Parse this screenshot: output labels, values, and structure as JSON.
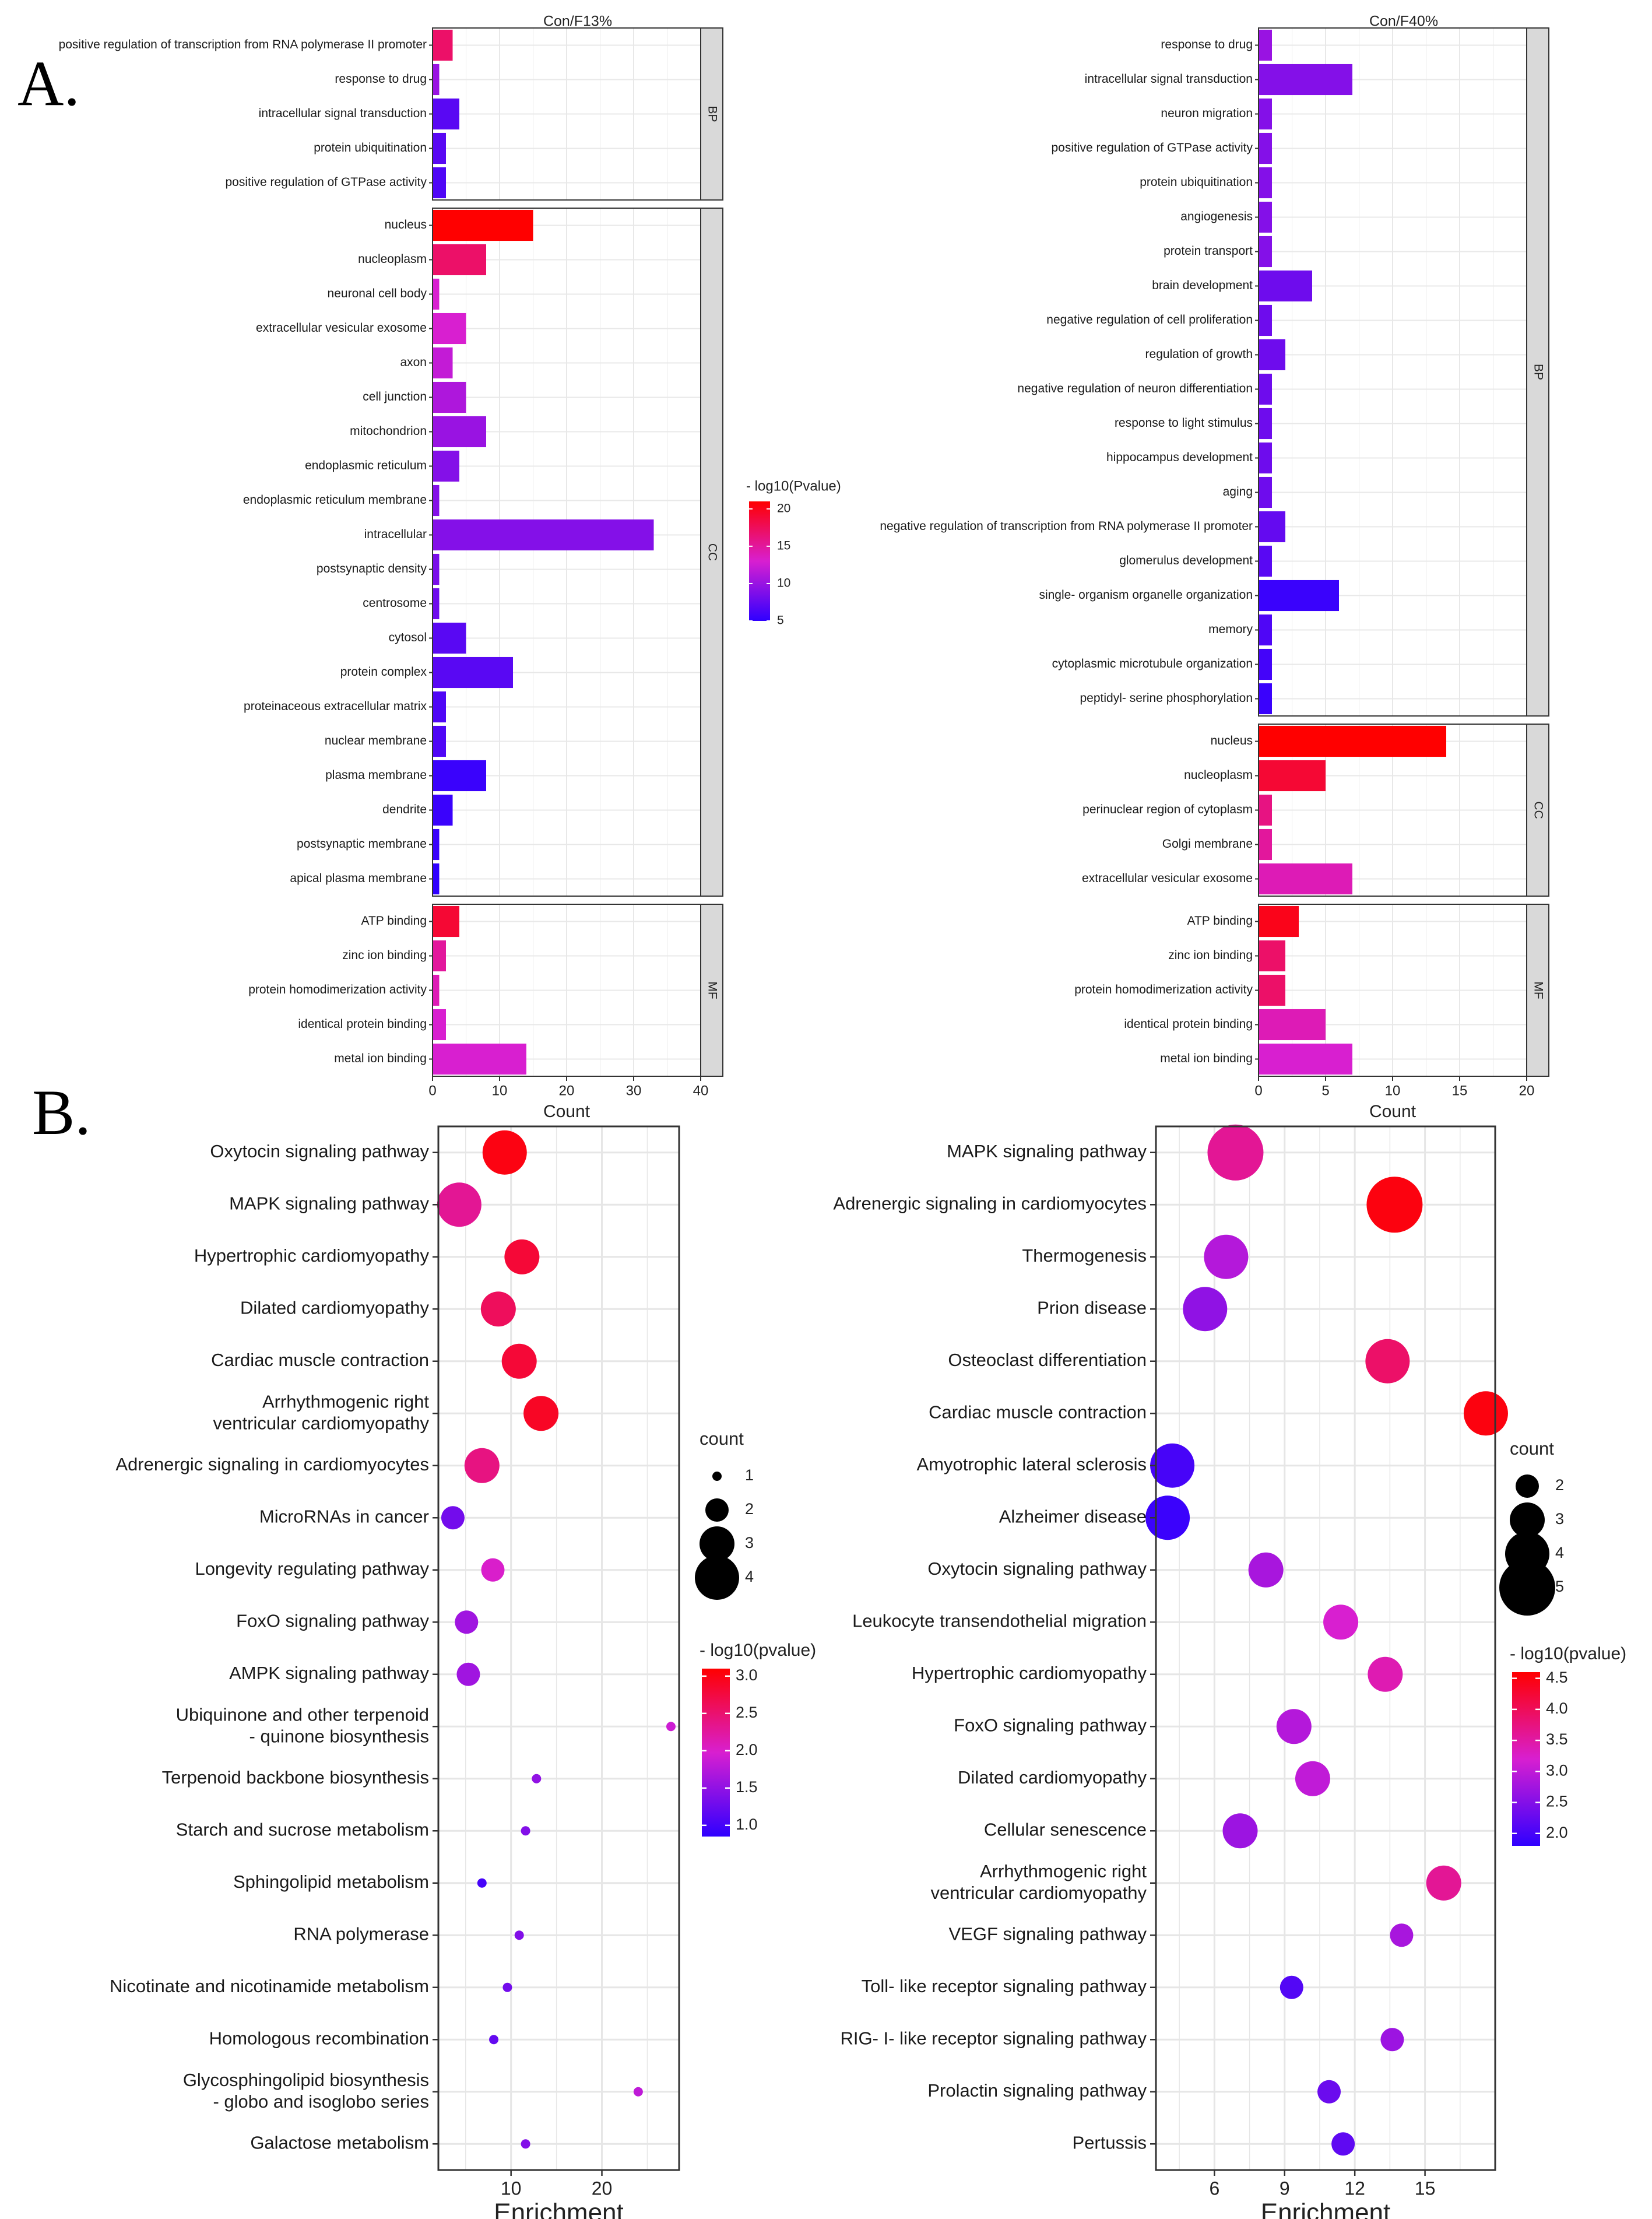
{
  "figure": {
    "panel_a_label": "A.",
    "panel_b_label": "B."
  },
  "chart_data": [
    {
      "type": "bar",
      "id": "go_con_f13",
      "title": "Con/F13%",
      "xlabel": "Count",
      "xlim": [
        0,
        40
      ],
      "xticks": [
        0,
        10,
        20,
        30,
        40
      ],
      "legend_title": "- log10(Pvalue)",
      "color_range": [
        5,
        21
      ],
      "color_ticks": [
        5,
        10,
        15,
        20
      ],
      "facets": [
        {
          "name": "BP",
          "terms": [
            {
              "label": "positive regulation of transcription from RNA polymerase II promoter",
              "count": 3,
              "logp": 17
            },
            {
              "label": "response to drug",
              "count": 1,
              "logp": 10
            },
            {
              "label": "intracellular signal transduction",
              "count": 4,
              "logp": 7
            },
            {
              "label": "protein ubiquitination",
              "count": 2,
              "logp": 7
            },
            {
              "label": "positive regulation of GTPase activity",
              "count": 2,
              "logp": 6.5
            }
          ]
        },
        {
          "name": "CC",
          "terms": [
            {
              "label": "nucleus",
              "count": 15,
              "logp": 21
            },
            {
              "label": "nucleoplasm",
              "count": 8,
              "logp": 17
            },
            {
              "label": "neuronal cell body",
              "count": 1,
              "logp": 13
            },
            {
              "label": "extracellular vesicular exosome",
              "count": 5,
              "logp": 13
            },
            {
              "label": "axon",
              "count": 3,
              "logp": 12
            },
            {
              "label": "cell junction",
              "count": 5,
              "logp": 11
            },
            {
              "label": "mitochondrion",
              "count": 8,
              "logp": 10
            },
            {
              "label": "endoplasmic reticulum",
              "count": 4,
              "logp": 9
            },
            {
              "label": "endoplasmic reticulum membrane",
              "count": 1,
              "logp": 9
            },
            {
              "label": "intracellular",
              "count": 33,
              "logp": 9
            },
            {
              "label": "postsynaptic density",
              "count": 1,
              "logp": 8.5
            },
            {
              "label": "centrosome",
              "count": 1,
              "logp": 8
            },
            {
              "label": "cytosol",
              "count": 5,
              "logp": 7
            },
            {
              "label": "protein complex",
              "count": 12,
              "logp": 7
            },
            {
              "label": "proteinaceous extracellular matrix",
              "count": 2,
              "logp": 6.5
            },
            {
              "label": "nuclear membrane",
              "count": 2,
              "logp": 6.5
            },
            {
              "label": "plasma membrane",
              "count": 8,
              "logp": 5.5
            },
            {
              "label": "dendrite",
              "count": 3,
              "logp": 5.5
            },
            {
              "label": "postsynaptic membrane",
              "count": 1,
              "logp": 5.5
            },
            {
              "label": "apical plasma membrane",
              "count": 1,
              "logp": 5
            }
          ]
        },
        {
          "name": "MF",
          "terms": [
            {
              "label": "ATP binding",
              "count": 4,
              "logp": 19
            },
            {
              "label": "zinc ion binding",
              "count": 2,
              "logp": 15
            },
            {
              "label": "protein homodimerization activity",
              "count": 1,
              "logp": 14
            },
            {
              "label": "identical protein binding",
              "count": 2,
              "logp": 13
            },
            {
              "label": "metal ion binding",
              "count": 14,
              "logp": 13
            }
          ]
        }
      ]
    },
    {
      "type": "bar",
      "id": "go_con_f40",
      "title": "Con/F40%",
      "xlabel": "Count",
      "xlim": [
        0,
        20
      ],
      "xticks": [
        0,
        5,
        10,
        15,
        20
      ],
      "color_range": [
        5,
        21
      ],
      "facets": [
        {
          "name": "BP",
          "terms": [
            {
              "label": "response to drug",
              "count": 1,
              "logp": 10
            },
            {
              "label": "intracellular signal transduction",
              "count": 7,
              "logp": 9
            },
            {
              "label": "neuron migration",
              "count": 1,
              "logp": 9
            },
            {
              "label": "positive regulation of GTPase activity",
              "count": 1,
              "logp": 9
            },
            {
              "label": "protein ubiquitination",
              "count": 1,
              "logp": 9
            },
            {
              "label": "angiogenesis",
              "count": 1,
              "logp": 9
            },
            {
              "label": "protein transport",
              "count": 1,
              "logp": 9
            },
            {
              "label": "brain development",
              "count": 4,
              "logp": 8
            },
            {
              "label": "negative regulation of cell proliferation",
              "count": 1,
              "logp": 8
            },
            {
              "label": "regulation of growth",
              "count": 2,
              "logp": 8
            },
            {
              "label": "negative regulation of neuron differentiation",
              "count": 1,
              "logp": 8
            },
            {
              "label": "response to light stimulus",
              "count": 1,
              "logp": 8
            },
            {
              "label": "hippocampus development",
              "count": 1,
              "logp": 8
            },
            {
              "label": "aging",
              "count": 1,
              "logp": 8
            },
            {
              "label": "negative regulation of transcription from RNA polymerase II promoter",
              "count": 2,
              "logp": 7.5
            },
            {
              "label": "glomerulus development",
              "count": 1,
              "logp": 7
            },
            {
              "label": "single- organism organelle organization",
              "count": 6,
              "logp": 5.5
            },
            {
              "label": "memory",
              "count": 1,
              "logp": 6.5
            },
            {
              "label": "cytoplasmic microtubule organization",
              "count": 1,
              "logp": 6
            },
            {
              "label": "peptidyl- serine phosphorylation",
              "count": 1,
              "logp": 5.5
            }
          ]
        },
        {
          "name": "CC",
          "terms": [
            {
              "label": "nucleus",
              "count": 14,
              "logp": 21
            },
            {
              "label": "nucleoplasm",
              "count": 5,
              "logp": 19
            },
            {
              "label": "perinuclear region of cytoplasm",
              "count": 1,
              "logp": 16
            },
            {
              "label": "Golgi membrane",
              "count": 1,
              "logp": 15
            },
            {
              "label": "extracellular vesicular exosome",
              "count": 7,
              "logp": 14
            }
          ]
        },
        {
          "name": "MF",
          "terms": [
            {
              "label": "ATP binding",
              "count": 3,
              "logp": 20
            },
            {
              "label": "zinc ion binding",
              "count": 2,
              "logp": 17
            },
            {
              "label": "protein homodimerization activity",
              "count": 2,
              "logp": 17
            },
            {
              "label": "identical protein binding",
              "count": 5,
              "logp": 14
            },
            {
              "label": "metal ion binding",
              "count": 7,
              "logp": 13
            }
          ]
        }
      ]
    },
    {
      "type": "scatter",
      "id": "kegg_left",
      "xlabel": "Enrichment",
      "xlim": [
        2,
        28.5
      ],
      "xticks": [
        10,
        20
      ],
      "size_title": "count",
      "size_ticks": [
        1,
        2,
        3,
        4
      ],
      "color_title": "- log10(pvalue)",
      "color_range": [
        0.85,
        3.1
      ],
      "color_ticks": [
        1.0,
        1.5,
        2.0,
        2.5,
        3.0
      ],
      "points": [
        {
          "label": [
            "Oxytocin signaling pathway"
          ],
          "x": 9.3,
          "count": 4,
          "logp": 3.0
        },
        {
          "label": [
            "MAPK signaling pathway"
          ],
          "x": 4.3,
          "count": 4,
          "logp": 2.3
        },
        {
          "label": [
            "Hypertrophic cardiomyopathy"
          ],
          "x": 11.2,
          "count": 3,
          "logp": 2.8
        },
        {
          "label": [
            "Dilated cardiomyopathy"
          ],
          "x": 8.6,
          "count": 3,
          "logp": 2.6
        },
        {
          "label": [
            "Cardiac muscle contraction"
          ],
          "x": 10.9,
          "count": 3,
          "logp": 2.8
        },
        {
          "label": [
            "Arrhythmogenic right",
            "ventricular cardiomyopathy"
          ],
          "x": 13.3,
          "count": 3,
          "logp": 2.9
        },
        {
          "label": [
            "Adrenergic signaling in cardiomyocytes"
          ],
          "x": 6.8,
          "count": 3,
          "logp": 2.4
        },
        {
          "label": [
            "MicroRNAs in cancer"
          ],
          "x": 3.6,
          "count": 2,
          "logp": 1.3
        },
        {
          "label": [
            "Longevity regulating pathway"
          ],
          "x": 8.0,
          "count": 2,
          "logp": 2.0
        },
        {
          "label": [
            "FoxO signaling pathway"
          ],
          "x": 5.1,
          "count": 2,
          "logp": 1.6
        },
        {
          "label": [
            "AMPK signaling pathway"
          ],
          "x": 5.3,
          "count": 2,
          "logp": 1.6
        },
        {
          "label": [
            "Ubiquinone and other terpenoid",
            "- quinone biosynthesis"
          ],
          "x": 27.6,
          "count": 1,
          "logp": 1.9
        },
        {
          "label": [
            "Terpenoid backbone biosynthesis"
          ],
          "x": 12.8,
          "count": 1,
          "logp": 1.5
        },
        {
          "label": [
            "Starch and sucrose metabolism"
          ],
          "x": 11.6,
          "count": 1,
          "logp": 1.4
        },
        {
          "label": [
            "Sphingolipid metabolism"
          ],
          "x": 6.8,
          "count": 1,
          "logp": 1.0
        },
        {
          "label": [
            "RNA polymerase"
          ],
          "x": 10.9,
          "count": 1,
          "logp": 1.4
        },
        {
          "label": [
            "Nicotinate and nicotinamide metabolism"
          ],
          "x": 9.6,
          "count": 1,
          "logp": 1.3
        },
        {
          "label": [
            "Homologous recombination"
          ],
          "x": 8.1,
          "count": 1,
          "logp": 1.2
        },
        {
          "label": [
            "Glycosphingolipid biosynthesis",
            "- globo and isoglobo series"
          ],
          "x": 24.0,
          "count": 1,
          "logp": 1.8
        },
        {
          "label": [
            "Galactose metabolism"
          ],
          "x": 11.6,
          "count": 1,
          "logp": 1.4
        }
      ]
    },
    {
      "type": "scatter",
      "id": "kegg_right",
      "xlabel": "Enrichment",
      "xlim": [
        3.5,
        18.0
      ],
      "xticks": [
        6,
        9,
        12,
        15
      ],
      "size_title": "count",
      "size_ticks": [
        2,
        3,
        4,
        5
      ],
      "color_title": "- log10(pvalue)",
      "color_range": [
        1.8,
        4.6
      ],
      "color_ticks": [
        2.0,
        2.5,
        3.0,
        3.5,
        4.0,
        4.5
      ],
      "points": [
        {
          "label": [
            "MAPK signaling pathway"
          ],
          "x": 6.9,
          "count": 5,
          "logp": 3.6
        },
        {
          "label": [
            "Adrenergic signaling in cardiomyocytes"
          ],
          "x": 13.7,
          "count": 5,
          "logp": 4.5
        },
        {
          "label": [
            "Thermogenesis"
          ],
          "x": 6.5,
          "count": 4,
          "logp": 2.9
        },
        {
          "label": [
            "Prion disease"
          ],
          "x": 5.6,
          "count": 4,
          "logp": 2.6
        },
        {
          "label": [
            "Osteoclast differentiation"
          ],
          "x": 13.4,
          "count": 4,
          "logp": 3.9
        },
        {
          "label": [
            "Cardiac muscle contraction"
          ],
          "x": 17.6,
          "count": 4,
          "logp": 4.5
        },
        {
          "label": [
            "Amyotrophic lateral sclerosis"
          ],
          "x": 4.2,
          "count": 4,
          "logp": 2.0
        },
        {
          "label": [
            "Alzheimer disease"
          ],
          "x": 4.0,
          "count": 4,
          "logp": 1.9
        },
        {
          "label": [
            "Oxytocin signaling pathway"
          ],
          "x": 8.2,
          "count": 3,
          "logp": 2.8
        },
        {
          "label": [
            "Leukocyte transendothelial migration"
          ],
          "x": 11.4,
          "count": 3,
          "logp": 3.2
        },
        {
          "label": [
            "Hypertrophic cardiomyopathy"
          ],
          "x": 13.3,
          "count": 3,
          "logp": 3.4
        },
        {
          "label": [
            "FoxO signaling pathway"
          ],
          "x": 9.4,
          "count": 3,
          "logp": 2.9
        },
        {
          "label": [
            "Dilated cardiomyopathy"
          ],
          "x": 10.2,
          "count": 3,
          "logp": 3.0
        },
        {
          "label": [
            "Cellular senescence"
          ],
          "x": 7.1,
          "count": 3,
          "logp": 2.7
        },
        {
          "label": [
            "Arrhythmogenic right",
            "ventricular cardiomyopathy"
          ],
          "x": 15.8,
          "count": 3,
          "logp": 3.6
        },
        {
          "label": [
            "VEGF signaling pathway"
          ],
          "x": 14.0,
          "count": 2,
          "logp": 2.8
        },
        {
          "label": [
            "Toll- like receptor signaling pathway"
          ],
          "x": 9.3,
          "count": 2,
          "logp": 2.1
        },
        {
          "label": [
            "RIG- I- like receptor signaling pathway"
          ],
          "x": 13.6,
          "count": 2,
          "logp": 2.7
        },
        {
          "label": [
            "Prolactin signaling pathway"
          ],
          "x": 10.9,
          "count": 2,
          "logp": 2.3
        },
        {
          "label": [
            "Pertussis"
          ],
          "x": 11.5,
          "count": 2,
          "logp": 2.2
        }
      ]
    }
  ]
}
